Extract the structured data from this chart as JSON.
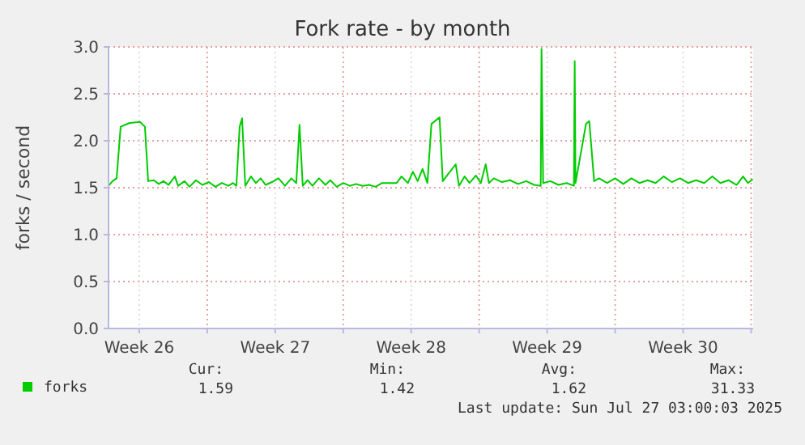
{
  "chart_data": {
    "type": "line",
    "title": "Fork rate - by month",
    "ylabel": "forks / second",
    "xlim": [
      "2025-06-23T22:00",
      "2025-07-27T02:30"
    ],
    "ylim": [
      0,
      3
    ],
    "xticks": [
      {
        "value": "2025-06-25T12:00",
        "label": "Week 26"
      },
      {
        "value": "2025-06-29",
        "label": null
      },
      {
        "value": "2025-07-02T12:00",
        "label": "Week 27"
      },
      {
        "value": "2025-07-06",
        "label": null
      },
      {
        "value": "2025-07-09T12:00",
        "label": "Week 28"
      },
      {
        "value": "2025-07-13",
        "label": null
      },
      {
        "value": "2025-07-16T12:00",
        "label": "Week 29"
      },
      {
        "value": "2025-07-20",
        "label": null
      },
      {
        "value": "2025-07-23T12:00",
        "label": "Week 30"
      },
      {
        "value": "2025-07-27",
        "label": null
      }
    ],
    "yticks": [
      {
        "value": 0,
        "label": "0.0"
      },
      0.5,
      {
        "value": 1,
        "label": "1.0"
      },
      1.5,
      {
        "value": 2,
        "label": "2.0"
      },
      2.5,
      {
        "value": 3,
        "label": "3.0"
      }
    ],
    "grid": true,
    "legend": "bottom left",
    "marker": "none",
    "line_style": "solid",
    "x": [
      "2025-06-23T22:00",
      "2025-06-24T03:00",
      "2025-06-24T08:00",
      "2025-06-24T13:00",
      "2025-06-25T00:00",
      "2025-06-25T13:00",
      "2025-06-25T19:00",
      "2025-06-25T23:00",
      "2025-06-26T06:00",
      "2025-06-26T12:00",
      "2025-06-26T18:00",
      "2025-06-27T00:00",
      "2025-06-27T08:00",
      "2025-06-27T12:00",
      "2025-06-27T20:00",
      "2025-06-28T02:00",
      "2025-06-28T10:00",
      "2025-06-28T18:00",
      "2025-06-29T02:00",
      "2025-06-29T10:00",
      "2025-06-29T18:00",
      "2025-06-30T02:00",
      "2025-06-30T08:00",
      "2025-06-30T12:00",
      "2025-06-30T16:00",
      "2025-06-30T19:00",
      "2025-06-30T23:00",
      "2025-07-01T06:00",
      "2025-07-01T12:00",
      "2025-07-01T18:00",
      "2025-07-02T00:00",
      "2025-07-02T08:00",
      "2025-07-02T16:00",
      "2025-07-03T00:00",
      "2025-07-03T08:00",
      "2025-07-03T14:00",
      "2025-07-03T18:00",
      "2025-07-03T22:00",
      "2025-07-04T04:00",
      "2025-07-04T10:00",
      "2025-07-04T18:00",
      "2025-07-05T02:00",
      "2025-07-05T08:00",
      "2025-07-05T16:00",
      "2025-07-06T00:00",
      "2025-07-06T08:00",
      "2025-07-06T16:00",
      "2025-07-07T00:00",
      "2025-07-07T08:00",
      "2025-07-07T16:00",
      "2025-07-08T00:00",
      "2025-07-08T18:00",
      "2025-07-09T00:00",
      "2025-07-09T08:00",
      "2025-07-09T14:00",
      "2025-07-09T20:00",
      "2025-07-10T02:00",
      "2025-07-10T08:00",
      "2025-07-10T13:00",
      "2025-07-10T23:00",
      "2025-07-11T03:00",
      "2025-07-11T10:00",
      "2025-07-11T19:00",
      "2025-07-11T23:00",
      "2025-07-12T06:00",
      "2025-07-12T12:00",
      "2025-07-12T20:00",
      "2025-07-13T02:00",
      "2025-07-13T08:00",
      "2025-07-13T12:00",
      "2025-07-13T18:00",
      "2025-07-14T04:00",
      "2025-07-14T14:00",
      "2025-07-15T00:00",
      "2025-07-15T10:00",
      "2025-07-15T20:00",
      "2025-07-16T04:00",
      "2025-07-16T05:00",
      "2025-07-16T07:00",
      "2025-07-16T16:00",
      "2025-07-17T02:00",
      "2025-07-17T12:00",
      "2025-07-17T21:00",
      "2025-07-17T22:00",
      "2025-07-17T23:00",
      "2025-07-18T12:00",
      "2025-07-18T16:00",
      "2025-07-18T22:00",
      "2025-07-19T04:00",
      "2025-07-19T14:00",
      "2025-07-20T00:00",
      "2025-07-20T10:00",
      "2025-07-20T20:00",
      "2025-07-21T06:00",
      "2025-07-21T16:00",
      "2025-07-22T02:00",
      "2025-07-22T12:00",
      "2025-07-22T22:00",
      "2025-07-23T08:00",
      "2025-07-23T18:00",
      "2025-07-24T04:00",
      "2025-07-24T14:00",
      "2025-07-25T00:00",
      "2025-07-25T10:00",
      "2025-07-25T20:00",
      "2025-07-26T06:00",
      "2025-07-26T14:00",
      "2025-07-26T20:00",
      "2025-07-27T02:00"
    ],
    "series": [
      {
        "name": "forks",
        "color": "#00cc00",
        "values": [
          1.52,
          1.57,
          1.6,
          2.15,
          2.19,
          2.2,
          2.15,
          1.57,
          1.58,
          1.54,
          1.57,
          1.53,
          1.62,
          1.52,
          1.57,
          1.51,
          1.58,
          1.53,
          1.56,
          1.51,
          1.55,
          1.52,
          1.55,
          1.52,
          2.15,
          2.24,
          1.52,
          1.62,
          1.55,
          1.6,
          1.53,
          1.56,
          1.6,
          1.52,
          1.6,
          1.55,
          2.17,
          1.52,
          1.58,
          1.52,
          1.6,
          1.53,
          1.58,
          1.51,
          1.55,
          1.52,
          1.54,
          1.52,
          1.53,
          1.51,
          1.55,
          1.55,
          1.62,
          1.55,
          1.67,
          1.57,
          1.7,
          1.55,
          2.18,
          2.25,
          1.57,
          1.65,
          1.75,
          1.52,
          1.62,
          1.55,
          1.63,
          1.55,
          1.75,
          1.55,
          1.6,
          1.56,
          1.58,
          1.54,
          1.57,
          1.53,
          1.52,
          2.98,
          1.55,
          1.57,
          1.53,
          1.55,
          1.52,
          2.85,
          1.55,
          2.18,
          2.21,
          1.57,
          1.6,
          1.55,
          1.6,
          1.54,
          1.6,
          1.55,
          1.58,
          1.55,
          1.62,
          1.56,
          1.6,
          1.55,
          1.58,
          1.55,
          1.62,
          1.55,
          1.58,
          1.53,
          1.62,
          1.55,
          1.59
        ]
      }
    ],
    "annotations": [
      "Cur:",
      "Min:",
      "Avg:",
      "Max:",
      "1.59",
      "1.42",
      "1.62",
      "31.33",
      "Last update: Sun Jul 27 03:00:03 2025"
    ]
  }
}
